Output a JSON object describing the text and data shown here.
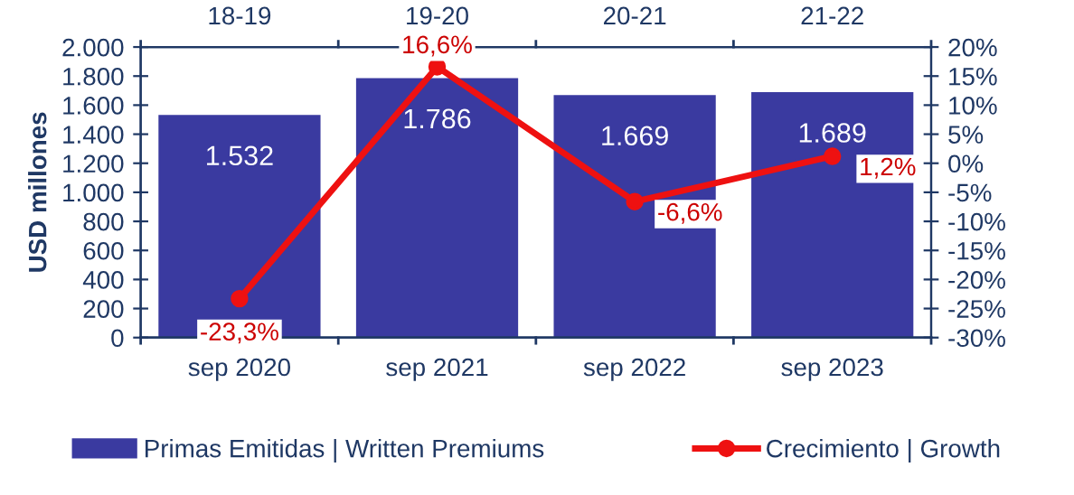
{
  "chart_data": {
    "type": "bar",
    "categories": [
      "sep 2020",
      "sep 2021",
      "sep 2022",
      "sep 2023"
    ],
    "annotations": [
      "18-19",
      "19-20",
      "20-21",
      "21-22"
    ],
    "ylabel": "USD millones",
    "series": [
      {
        "name": "Primas Emitidas | Written Premiums",
        "color": "#3a3aa0",
        "values": [
          1532,
          1786,
          1669,
          1689
        ],
        "value_labels": [
          "1.532",
          "1.786",
          "1.669",
          "1.689"
        ]
      },
      {
        "name": "Crecimiento | Growth",
        "type": "line",
        "axis": "y2",
        "color": "#ee1111",
        "marker": "circle",
        "values": [
          -23.3,
          16.6,
          -6.6,
          1.2
        ],
        "value_labels": [
          "-23,3%",
          "16,6%",
          "-6,6%",
          "1,2%"
        ]
      }
    ],
    "ylim": [
      0,
      2000
    ],
    "yticks": [
      0,
      200,
      400,
      600,
      800,
      {
        "value": 1000,
        "label": "1.000"
      },
      {
        "value": 1200,
        "label": "1.200"
      },
      {
        "value": 1400,
        "label": "1.400"
      },
      {
        "value": 1600,
        "label": "1.600"
      },
      {
        "value": 1800,
        "label": "1.800"
      },
      {
        "value": 2000,
        "label": "2.000"
      }
    ],
    "y2lim": [
      -30,
      20
    ],
    "y2ticks": [
      {
        "value": -30,
        "label": "-30%"
      },
      {
        "value": -25,
        "label": "-25%"
      },
      {
        "value": -20,
        "label": "-20%"
      },
      {
        "value": -15,
        "label": "-15%"
      },
      {
        "value": -10,
        "label": "-10%"
      },
      {
        "value": -5,
        "label": "-5%"
      },
      {
        "value": 0,
        "label": "0%"
      },
      {
        "value": 5,
        "label": "5%"
      },
      {
        "value": 10,
        "label": "10%"
      },
      {
        "value": 15,
        "label": "15%"
      },
      {
        "value": 20,
        "label": "20%"
      }
    ],
    "grid": false,
    "legend": "bottom"
  }
}
